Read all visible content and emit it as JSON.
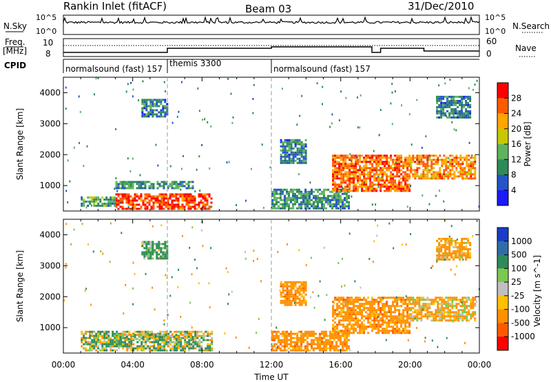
{
  "header": {
    "station": "Rankin Inlet (fitACF)",
    "beam": "Beam 03",
    "date": "31/Dec/2010"
  },
  "strips": {
    "nsky_label": "N.Sky",
    "nsky_tick_top": "10^5",
    "nsky_tick_bottom": "10^0",
    "nsearch_label": "N.Search",
    "nsearch_tick_top": "10^5",
    "nsearch_tick_bottom": "10^0",
    "freq_label_1": "Freq.",
    "freq_label_2": "[MHz]",
    "freq_tick_top": "10",
    "freq_tick_bottom": "8",
    "nave_label": "Nave",
    "nave_tick_top": "60",
    "nave_tick_bottom": "0",
    "cpid_label": "CPID",
    "cpid_segments": [
      {
        "label": "normalsound (fast) 157",
        "start": 0,
        "end": 6
      },
      {
        "label": "themis 3300",
        "start": 6,
        "end": 12
      },
      {
        "label": "normalsound (fast) 157",
        "start": 12,
        "end": 24
      }
    ]
  },
  "power_colorbar": {
    "title": "Power [dB]",
    "ticks": [
      "4",
      "8",
      "12",
      "16",
      "20",
      "24",
      "28"
    ],
    "colors": [
      "#1a1aff",
      "#2455c8",
      "#2e8b57",
      "#5fb35f",
      "#c8c800",
      "#ffa500",
      "#ff5a00",
      "#ff0000"
    ]
  },
  "velocity_colorbar": {
    "title": "Velocity [m s^-1]",
    "ticks": [
      "1000",
      "500",
      "100",
      "25",
      "-25",
      "-100",
      "-500",
      "-1000"
    ],
    "colors": [
      "#1a3cc8",
      "#2e6ea8",
      "#2e8b57",
      "#7cc850",
      "#bfbfbf",
      "#ffc000",
      "#ff9000",
      "#ff5a00",
      "#ff0000"
    ]
  },
  "axes": {
    "ylabel": "Slant Range [km]",
    "xlabel": "Time UT",
    "y_ticks": [
      "1000",
      "2000",
      "3000",
      "4000"
    ],
    "x_ticks": [
      "00:00",
      "04:00",
      "08:00",
      "12:00",
      "16:00",
      "20:00",
      "00:00"
    ]
  },
  "chart_data": [
    {
      "type": "heatmap",
      "name": "Power",
      "x_unit": "hours UT",
      "ylabel": "Slant Range [km]",
      "xlim": [
        0,
        24
      ],
      "ylim": [
        180,
        4500
      ],
      "clim": [
        0,
        30
      ],
      "regions": [
        {
          "x": [
            3.0,
            8.6
          ],
          "y": [
            250,
            750
          ],
          "value": 26
        },
        {
          "x": [
            1.0,
            3.0
          ],
          "y": [
            350,
            650
          ],
          "value": 12
        },
        {
          "x": [
            3.0,
            7.5
          ],
          "y": [
            900,
            1150
          ],
          "value": 10
        },
        {
          "x": [
            12.0,
            16.5
          ],
          "y": [
            250,
            900
          ],
          "value": 10
        },
        {
          "x": [
            12.5,
            14.0
          ],
          "y": [
            1700,
            2500
          ],
          "value": 8
        },
        {
          "x": [
            15.5,
            20.0
          ],
          "y": [
            800,
            2000
          ],
          "value": 24
        },
        {
          "x": [
            20.0,
            23.7
          ],
          "y": [
            1200,
            2000
          ],
          "value": 22
        },
        {
          "x": [
            4.5,
            6.0
          ],
          "y": [
            3200,
            3800
          ],
          "value": 8
        },
        {
          "x": [
            21.5,
            23.5
          ],
          "y": [
            3200,
            3900
          ],
          "value": 8
        }
      ]
    },
    {
      "type": "heatmap",
      "name": "Velocity",
      "x_unit": "hours UT",
      "ylabel": "Slant Range [km]",
      "xlim": [
        0,
        24
      ],
      "ylim": [
        180,
        4500
      ],
      "clim": [
        -1000,
        1000
      ],
      "regions": [
        {
          "x": [
            1.0,
            8.6
          ],
          "y": [
            250,
            900
          ],
          "value": 80
        },
        {
          "x": [
            3.0,
            7.5
          ],
          "y": [
            600,
            800
          ],
          "value": 0
        },
        {
          "x": [
            12.0,
            16.5
          ],
          "y": [
            250,
            900
          ],
          "value": -300
        },
        {
          "x": [
            12.5,
            14.0
          ],
          "y": [
            1700,
            2500
          ],
          "value": -300
        },
        {
          "x": [
            15.5,
            20.0
          ],
          "y": [
            800,
            2000
          ],
          "value": -300
        },
        {
          "x": [
            20.0,
            23.7
          ],
          "y": [
            1200,
            2000
          ],
          "value": -150
        },
        {
          "x": [
            4.5,
            6.0
          ],
          "y": [
            3200,
            3800
          ],
          "value": 200
        },
        {
          "x": [
            21.5,
            23.5
          ],
          "y": [
            3200,
            3900
          ],
          "value": -200
        }
      ]
    }
  ]
}
